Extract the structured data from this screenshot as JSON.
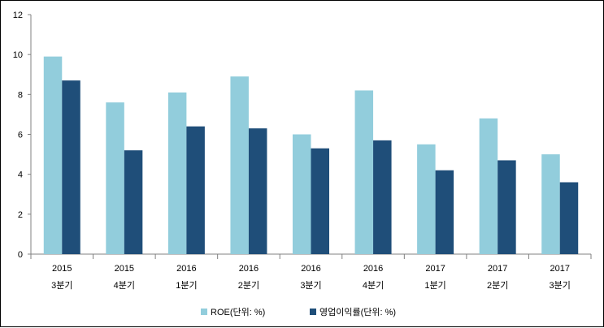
{
  "chart_data": {
    "type": "bar",
    "title": "",
    "xlabel": "",
    "ylabel": "",
    "ylim": [
      0,
      12
    ],
    "yticks": [
      0,
      2,
      4,
      6,
      8,
      10,
      12
    ],
    "categories": [
      [
        "2015",
        "3분기"
      ],
      [
        "2015",
        "4분기"
      ],
      [
        "2016",
        "1분기"
      ],
      [
        "2016",
        "2분기"
      ],
      [
        "2016",
        "3분기"
      ],
      [
        "2016",
        "4분기"
      ],
      [
        "2017",
        "1분기"
      ],
      [
        "2017",
        "2분기"
      ],
      [
        "2017",
        "3분기"
      ]
    ],
    "series": [
      {
        "name": "ROE(단위: %)",
        "color": "#92CDDC",
        "values": [
          9.9,
          7.6,
          8.1,
          8.9,
          6.0,
          8.2,
          5.5,
          6.8,
          5.0
        ]
      },
      {
        "name": "영업이익률(단위: %)",
        "color": "#1F4E79",
        "values": [
          8.7,
          5.2,
          6.4,
          6.3,
          5.3,
          5.7,
          4.2,
          4.7,
          3.6
        ]
      }
    ],
    "grid": false,
    "legend": "bottom-center"
  }
}
